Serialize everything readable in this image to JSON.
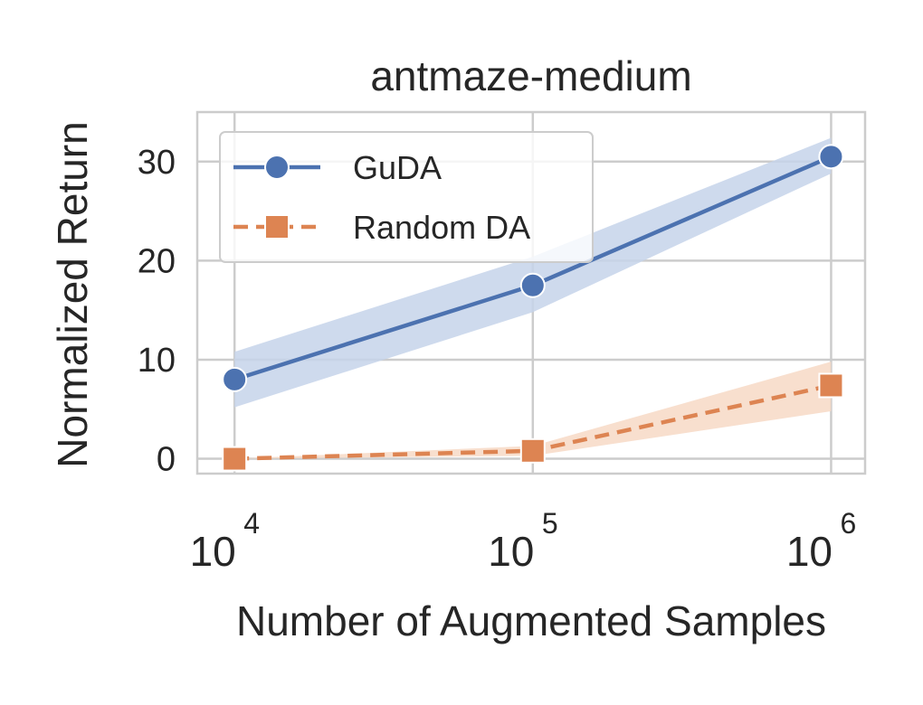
{
  "chart_data": {
    "type": "line",
    "title": "antmaze-medium",
    "xlabel": "Number of Augmented Samples",
    "ylabel": "Normalized Return",
    "xscale": "log",
    "x": [
      10000,
      100000,
      1000000
    ],
    "xlim": [
      7500,
      1300000
    ],
    "ylim": [
      -1.5,
      35
    ],
    "yticks": [
      0,
      10,
      20,
      30
    ],
    "xticks": [
      {
        "value": 10000,
        "base": "10",
        "exp": "4"
      },
      {
        "value": 100000,
        "base": "10",
        "exp": "5"
      },
      {
        "value": 1000000,
        "base": "10",
        "exp": "6"
      }
    ],
    "grid": true,
    "legend_position": "upper-left",
    "series": [
      {
        "name": "GuDA",
        "values": [
          8.0,
          17.5,
          30.5
        ],
        "band_lower": [
          5.2,
          14.8,
          28.8
        ],
        "band_upper": [
          10.8,
          20.4,
          32.4
        ],
        "color": "#4c72b0",
        "band_color": "#c5d3ea",
        "linestyle": "solid",
        "marker": "circle"
      },
      {
        "name": "Random DA",
        "values": [
          0.0,
          0.8,
          7.4
        ],
        "band_lower": [
          0.0,
          0.3,
          4.8
        ],
        "band_upper": [
          0.0,
          1.3,
          9.8
        ],
        "color": "#dd8452",
        "band_color": "#f7d9c6",
        "linestyle": "dashed",
        "marker": "square"
      }
    ]
  }
}
